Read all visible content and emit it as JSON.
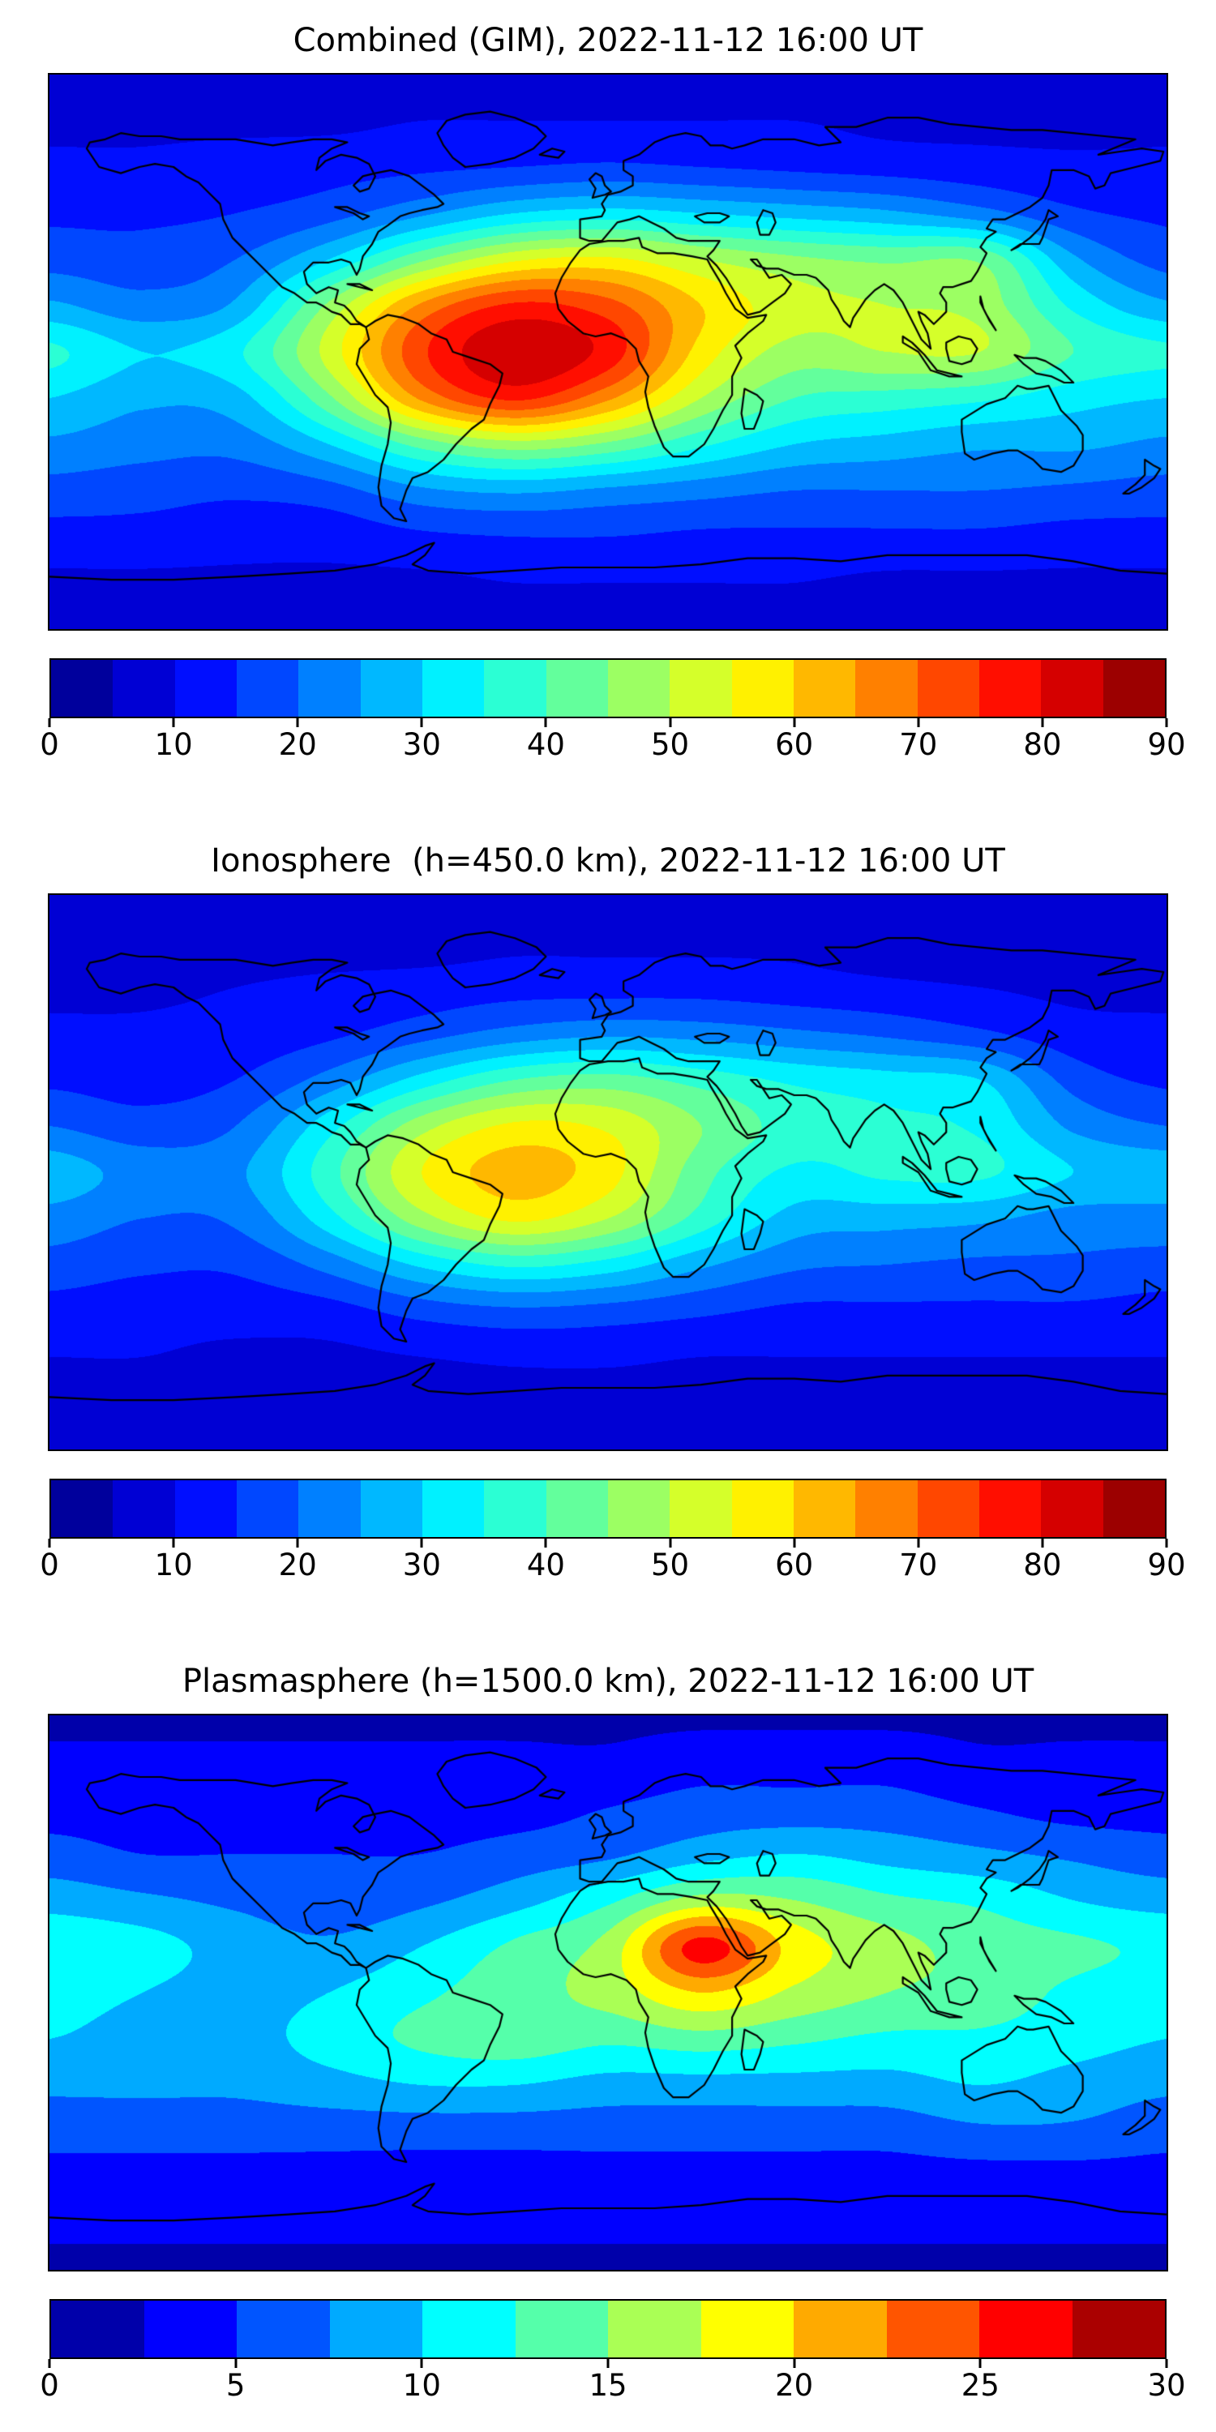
{
  "figure": {
    "background": "#ffffff",
    "basemap": "world-coastlines",
    "coastline_color": "#000000"
  },
  "chart_data": [
    {
      "type": "contour",
      "title": "Combined (GIM), 2022-11-12 16:00 UT",
      "colormap": "jet",
      "vmin": 0,
      "vmax": 90,
      "level_step": 5,
      "colorbar_ticks": [
        0,
        10,
        20,
        30,
        40,
        50,
        60,
        70,
        80,
        90
      ],
      "legend_position": "bottom",
      "grid": {
        "lons": [
          -180,
          -150,
          -120,
          -90,
          -60,
          -30,
          0,
          30,
          60,
          90,
          120,
          150,
          180
        ],
        "lats": [
          90,
          75,
          60,
          45,
          30,
          15,
          0,
          -15,
          -30,
          -45,
          -60,
          -75,
          -90
        ],
        "values": [
          [
            8,
            8,
            8,
            8,
            8,
            8,
            8,
            8,
            8,
            8,
            8,
            8,
            8
          ],
          [
            9,
            9,
            9,
            9,
            10,
            10,
            10,
            10,
            10,
            9,
            9,
            9,
            9
          ],
          [
            11,
            11,
            12,
            13,
            14,
            15,
            16,
            15,
            14,
            13,
            12,
            11,
            11
          ],
          [
            14,
            14,
            15,
            18,
            24,
            30,
            32,
            30,
            28,
            26,
            22,
            16,
            14
          ],
          [
            18,
            17,
            20,
            30,
            44,
            54,
            56,
            50,
            46,
            44,
            44,
            26,
            18
          ],
          [
            26,
            22,
            26,
            46,
            66,
            76,
            72,
            60,
            52,
            50,
            48,
            34,
            26
          ],
          [
            36,
            30,
            34,
            52,
            74,
            84,
            78,
            58,
            48,
            50,
            50,
            40,
            36
          ],
          [
            30,
            26,
            28,
            44,
            66,
            76,
            66,
            50,
            40,
            38,
            36,
            32,
            30
          ],
          [
            24,
            22,
            22,
            30,
            42,
            48,
            44,
            36,
            30,
            28,
            26,
            26,
            24
          ],
          [
            18,
            17,
            16,
            18,
            24,
            26,
            24,
            22,
            20,
            20,
            20,
            19,
            18
          ],
          [
            13,
            13,
            12,
            12,
            14,
            15,
            15,
            14,
            14,
            14,
            14,
            13,
            13
          ],
          [
            9,
            9,
            9,
            9,
            9,
            10,
            10,
            10,
            10,
            9,
            9,
            9,
            9
          ],
          [
            8,
            8,
            8,
            8,
            8,
            8,
            8,
            8,
            8,
            8,
            8,
            8,
            8
          ]
        ]
      }
    },
    {
      "type": "contour",
      "title": "Ionosphere  (h=450.0 km), 2022-11-12 16:00 UT",
      "colormap": "jet",
      "vmin": 0,
      "vmax": 90,
      "level_step": 5,
      "colorbar_ticks": [
        0,
        10,
        20,
        30,
        40,
        50,
        60,
        70,
        80,
        90
      ],
      "legend_position": "bottom",
      "grid": {
        "lons": [
          -180,
          -150,
          -120,
          -90,
          -60,
          -30,
          0,
          30,
          60,
          90,
          120,
          150,
          180
        ],
        "lats": [
          90,
          75,
          60,
          45,
          30,
          15,
          0,
          -15,
          -30,
          -45,
          -60,
          -75,
          -90
        ],
        "values": [
          [
            7,
            7,
            7,
            7,
            7,
            7,
            7,
            7,
            7,
            7,
            7,
            7,
            7
          ],
          [
            8,
            8,
            8,
            8,
            8,
            9,
            9,
            9,
            9,
            8,
            8,
            8,
            8
          ],
          [
            9,
            9,
            10,
            11,
            12,
            13,
            13,
            13,
            12,
            11,
            10,
            9,
            9
          ],
          [
            11,
            11,
            12,
            14,
            18,
            22,
            24,
            23,
            21,
            19,
            16,
            12,
            11
          ],
          [
            14,
            13,
            15,
            22,
            32,
            40,
            42,
            38,
            34,
            32,
            30,
            18,
            14
          ],
          [
            20,
            17,
            20,
            33,
            48,
            56,
            54,
            45,
            38,
            36,
            34,
            24,
            20
          ],
          [
            28,
            23,
            24,
            38,
            55,
            62,
            57,
            42,
            34,
            36,
            36,
            30,
            28
          ],
          [
            23,
            20,
            21,
            33,
            48,
            56,
            50,
            38,
            28,
            27,
            26,
            23,
            23
          ],
          [
            18,
            16,
            16,
            22,
            31,
            36,
            33,
            26,
            21,
            20,
            19,
            19,
            18
          ],
          [
            13,
            12,
            12,
            13,
            17,
            19,
            18,
            16,
            14,
            14,
            14,
            14,
            13
          ],
          [
            10,
            10,
            9,
            9,
            10,
            11,
            11,
            10,
            10,
            10,
            10,
            10,
            10
          ],
          [
            8,
            8,
            8,
            8,
            8,
            8,
            8,
            8,
            8,
            8,
            8,
            8,
            8
          ],
          [
            7,
            7,
            7,
            7,
            7,
            7,
            7,
            7,
            7,
            7,
            7,
            7,
            7
          ]
        ]
      }
    },
    {
      "type": "contour",
      "title": "Plasmasphere (h=1500.0 km), 2022-11-12 16:00 UT",
      "colormap": "jet",
      "vmin": 0,
      "vmax": 30,
      "level_step": 2.5,
      "colorbar_ticks": [
        0,
        5,
        10,
        15,
        20,
        25,
        30
      ],
      "legend_position": "bottom",
      "grid": {
        "lons": [
          -180,
          -150,
          -120,
          -90,
          -60,
          -30,
          0,
          30,
          60,
          90,
          120,
          150,
          180
        ],
        "lats": [
          90,
          75,
          60,
          45,
          30,
          15,
          0,
          -15,
          -30,
          -45,
          -60,
          -75,
          -90
        ],
        "values": [
          [
            2,
            2,
            2,
            2,
            2,
            2,
            2,
            2,
            2,
            2,
            2,
            2,
            2
          ],
          [
            3,
            3,
            3,
            3,
            3,
            3,
            3,
            4,
            4,
            4,
            3,
            3,
            3
          ],
          [
            4,
            4,
            4,
            4,
            4,
            4,
            5,
            6,
            6,
            6,
            5,
            4,
            4
          ],
          [
            6,
            5,
            5,
            5,
            5,
            6,
            7,
            9,
            10,
            9,
            8,
            7,
            6
          ],
          [
            9,
            8,
            7,
            6,
            7,
            9,
            12,
            16,
            15,
            13,
            12,
            10,
            9
          ],
          [
            12,
            11,
            9,
            8,
            10,
            13,
            16,
            26,
            19,
            16,
            14,
            13,
            12
          ],
          [
            11,
            10,
            9,
            10,
            12,
            14,
            16,
            20,
            17,
            15,
            14,
            12,
            11
          ],
          [
            10,
            9,
            9,
            11,
            13,
            14,
            13,
            14,
            13,
            12,
            12,
            11,
            10
          ],
          [
            8,
            8,
            8,
            9,
            10,
            10,
            9,
            9,
            9,
            9,
            10,
            9,
            8
          ],
          [
            6,
            6,
            6,
            6,
            6,
            6,
            6,
            6,
            6,
            6,
            7,
            7,
            6
          ],
          [
            4,
            4,
            4,
            4,
            4,
            4,
            4,
            4,
            4,
            4,
            4,
            4,
            4
          ],
          [
            3,
            3,
            3,
            3,
            3,
            3,
            3,
            3,
            3,
            3,
            3,
            3,
            3
          ],
          [
            2,
            2,
            2,
            2,
            2,
            2,
            2,
            2,
            2,
            2,
            2,
            2,
            2
          ]
        ]
      }
    }
  ]
}
